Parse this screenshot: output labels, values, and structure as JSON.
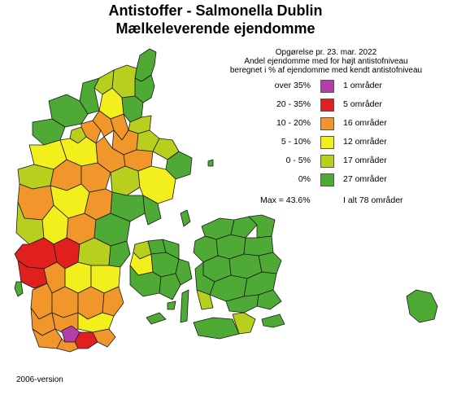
{
  "title_line1": "Antistoffer - Salmonella Dublin",
  "title_line2": "Mælkeleverende ejendomme",
  "info_line1": "Opgørelse pr. 23. mar. 2022",
  "info_line2": "Andel ejendomme med for højt antistofniveau",
  "info_line3": "beregnet i % af ejendomme med kendt antistofniveau",
  "legend": [
    {
      "range": "over 35%",
      "count": "1 områder",
      "color": "#b23fa7"
    },
    {
      "range": "20 - 35%",
      "count": "5 områder",
      "color": "#e01f1f"
    },
    {
      "range": "10 - 20%",
      "count": "16 områder",
      "color": "#f0962a"
    },
    {
      "range": "5 - 10%",
      "count": "12 områder",
      "color": "#f2ef1c"
    },
    {
      "range": "0 - 5%",
      "count": "17 områder",
      "color": "#b8cf1e"
    },
    {
      "range": "0%",
      "count": "27 områder",
      "color": "#4fa935"
    }
  ],
  "legend_max": "Max = 43.6%",
  "legend_total": "I alt 78 områder",
  "footer": "2006-version",
  "colors": {
    "purple": "#b23fa7",
    "red": "#e01f1f",
    "orange": "#f0962a",
    "yellow": "#f2ef1c",
    "lime": "#b8cf1e",
    "green": "#4fa935"
  }
}
